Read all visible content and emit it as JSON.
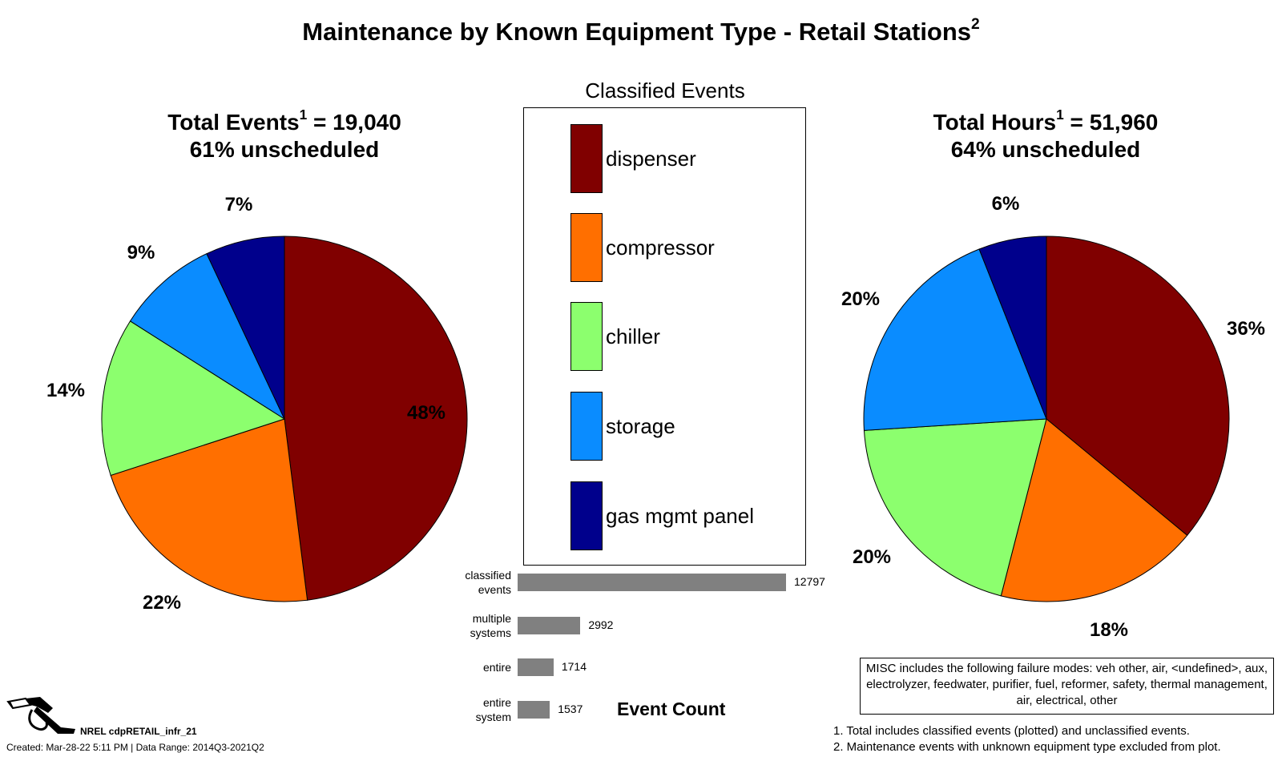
{
  "title": "Maintenance by Known Equipment Type - Retail Stations",
  "title_sup": "2",
  "left_pie": {
    "head_prefix": "Total Events",
    "head_sup": "1",
    "head_value": " = 19,040",
    "subhead": "61% unscheduled"
  },
  "right_pie": {
    "head_prefix": "Total Hours",
    "head_sup": "1",
    "head_value": " = 51,960",
    "subhead": "64% unscheduled"
  },
  "legend": {
    "title": "Classified Events",
    "items": [
      {
        "label": "dispenser",
        "color": "#800000"
      },
      {
        "label": "compressor",
        "color": "#ff6f00"
      },
      {
        "label": "chiller",
        "color": "#8cff6e"
      },
      {
        "label": "storage",
        "color": "#0a8cff"
      },
      {
        "label": "gas mgmt panel",
        "color": "#00008c"
      }
    ]
  },
  "event_count_label": "Event Count",
  "misc_note": "MISC includes the following failure modes: veh other, air, <undefined>, aux, electrolyzer, feedwater, purifier, fuel, reformer, safety, thermal management, air, electrical, other",
  "footnotes": [
    "1. Total includes classified events (plotted) and unclassified events.",
    "2. Maintenance events with unknown equipment type excluded from plot."
  ],
  "footer": {
    "id": "NREL cdpRETAIL_infr_21",
    "created": "Created: Mar-28-22  5:11 PM | Data Range: 2014Q3-2021Q2"
  },
  "chart_data": [
    {
      "type": "pie",
      "categories": [
        "dispenser",
        "compressor",
        "chiller",
        "storage",
        "gas mgmt panel"
      ],
      "values": [
        48,
        22,
        14,
        9,
        7
      ],
      "labels": [
        "48%",
        "22%",
        "14%",
        "9%",
        "7%"
      ],
      "colors": [
        "#800000",
        "#ff6f00",
        "#8cff6e",
        "#0a8cff",
        "#00008c"
      ]
    },
    {
      "type": "pie",
      "categories": [
        "dispenser",
        "compressor",
        "chiller",
        "storage",
        "gas mgmt panel"
      ],
      "values": [
        36,
        18,
        20,
        20,
        6
      ],
      "labels": [
        "36%",
        "18%",
        "20%",
        "20%",
        "6%"
      ],
      "colors": [
        "#800000",
        "#ff6f00",
        "#8cff6e",
        "#0a8cff",
        "#00008c"
      ]
    },
    {
      "type": "bar",
      "orientation": "horizontal",
      "categories": [
        "classified events",
        "multiple systems",
        "entire",
        "entire system"
      ],
      "category_lines": [
        [
          "classified",
          "events"
        ],
        [
          "multiple",
          "systems"
        ],
        [
          "entire"
        ],
        [
          "entire",
          "system"
        ]
      ],
      "values": [
        12797,
        2992,
        1714,
        1537
      ],
      "xlabel": "Event Count",
      "color": "#808080"
    }
  ]
}
